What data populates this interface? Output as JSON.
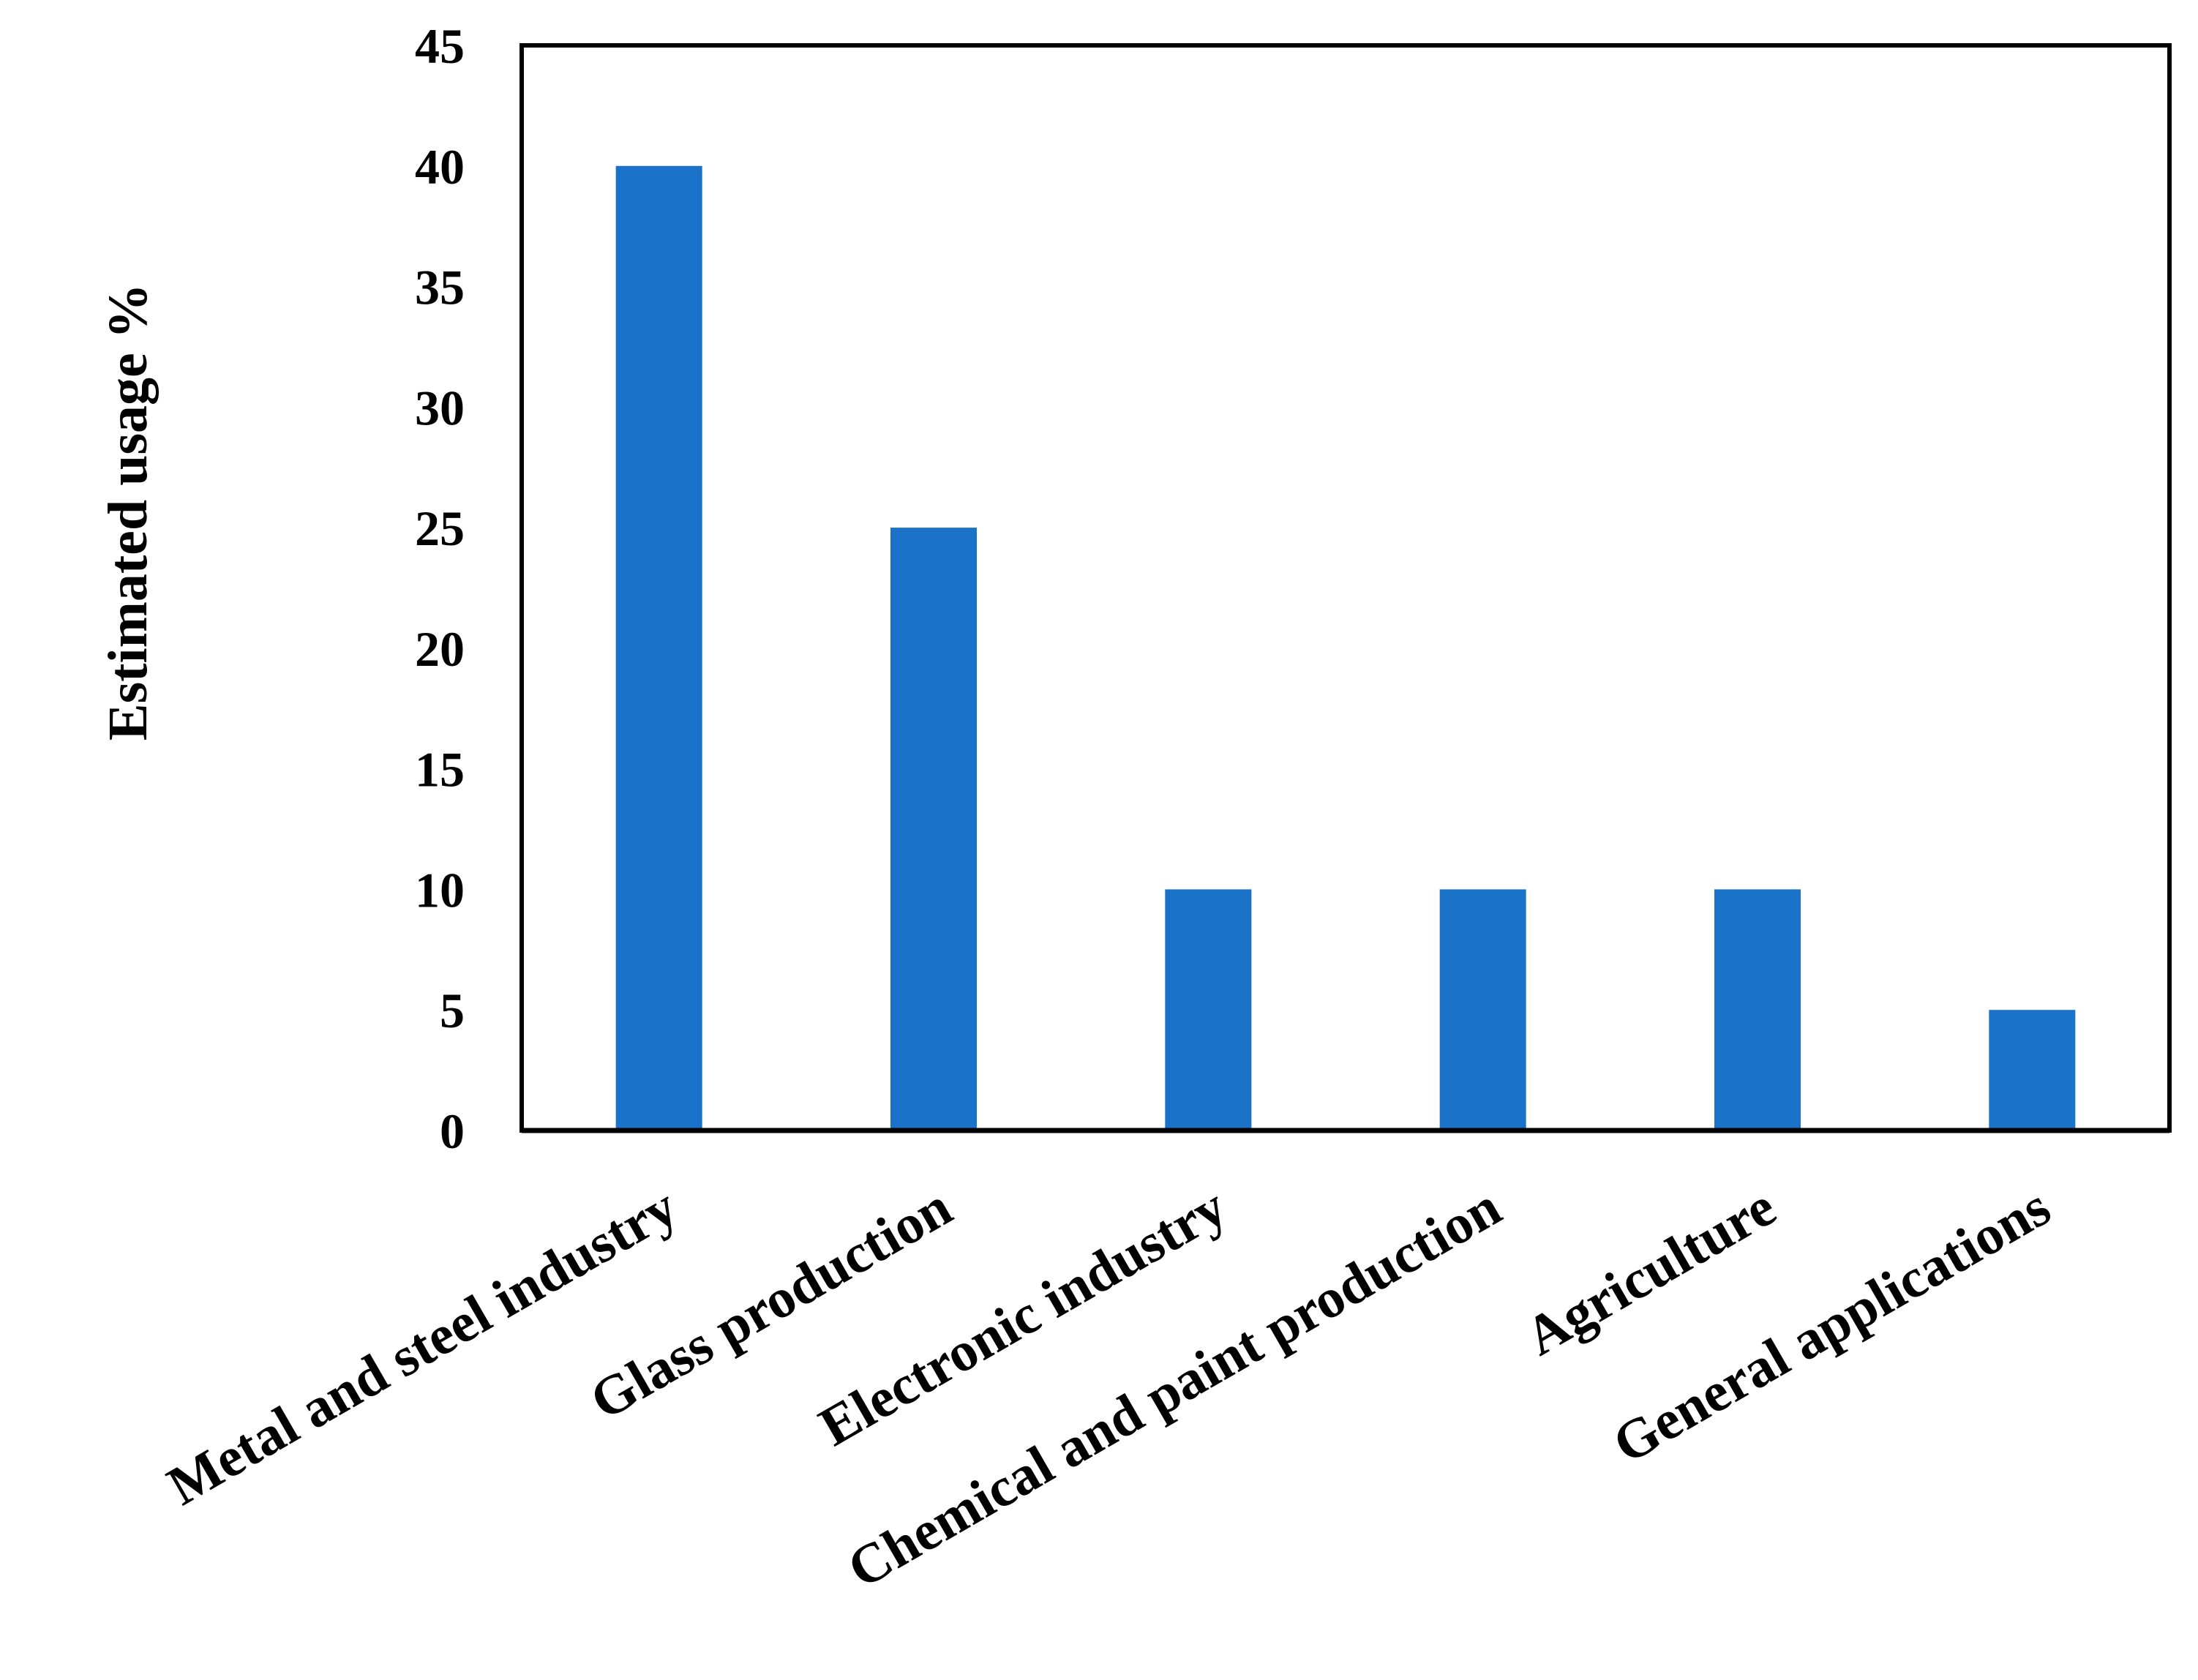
{
  "chart_data": {
    "type": "bar",
    "title": "",
    "xlabel": "",
    "ylabel": "Estimated usage %",
    "ylim": [
      0,
      45
    ],
    "yticks": [
      0,
      5,
      10,
      15,
      20,
      25,
      30,
      35,
      40,
      45
    ],
    "grid": false,
    "legend": "none",
    "categories": [
      "Metal and steel industry",
      "Glass production",
      "Electronic industry",
      "Chemical and paint production",
      "Agriculture",
      "General applications"
    ],
    "values": [
      40,
      25,
      10,
      10,
      10,
      5
    ],
    "colors": {
      "bar": "#1a73c8",
      "axis": "#000000",
      "background": "#ffffff"
    }
  }
}
